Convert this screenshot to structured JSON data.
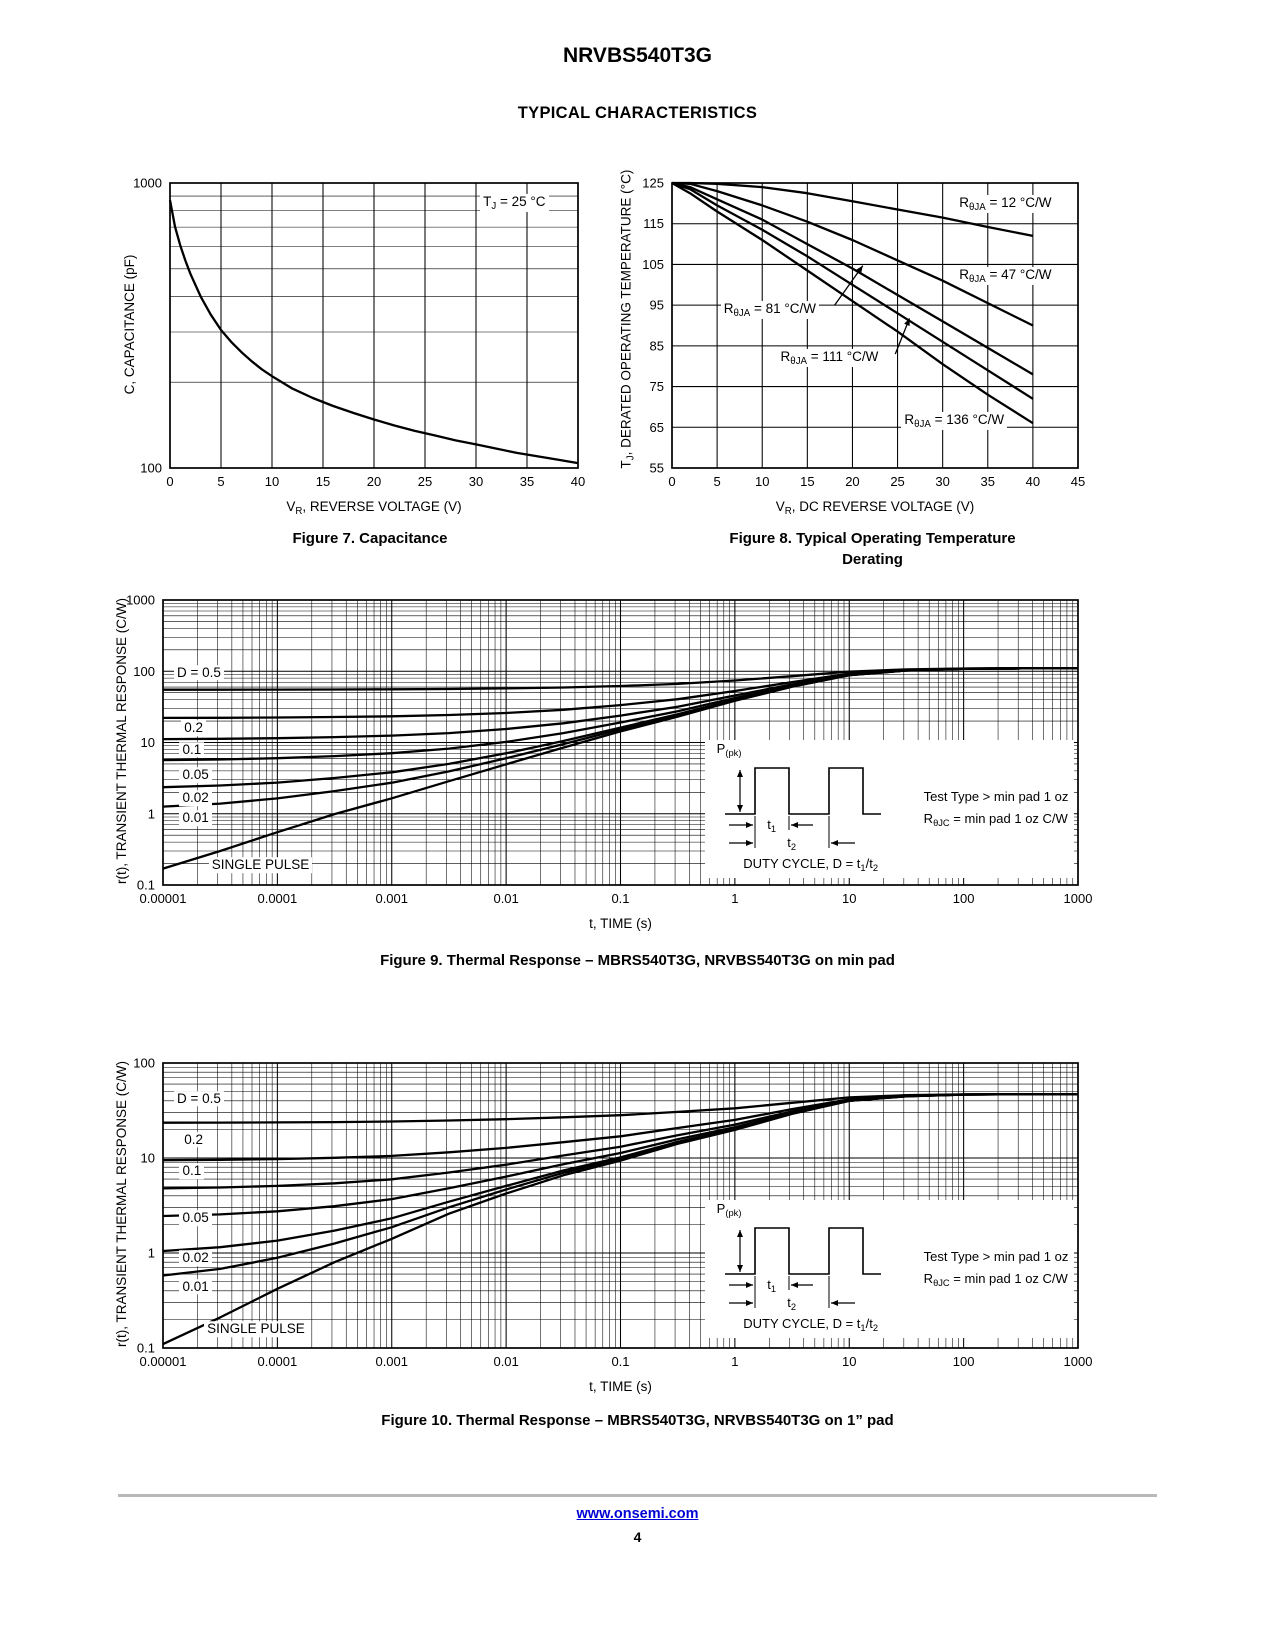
{
  "page": {
    "title": "NRVBS540T3G",
    "subtitle": "TYPICAL CHARACTERISTICS",
    "footer": {
      "link": "www.onsemi.com",
      "page_number": "4"
    }
  },
  "inset": {
    "ppk": "P~(pk)~",
    "t1": "t~1~",
    "t2": "t~2~",
    "duty": "DUTY CYCLE, D = t~1~/t~2~",
    "note1": "Test Type > min pad 1 oz",
    "note2": "R~θJC~ = min pad 1 oz C/W"
  },
  "chart_data": [
    {
      "key": "fig7",
      "type": "line",
      "caption": "Figure 7. Capacitance",
      "x": {
        "scale": "linear",
        "min": 0,
        "max": 40,
        "ticks": [
          0,
          5,
          10,
          15,
          20,
          25,
          30,
          35,
          40
        ],
        "title": "V~R~, REVERSE VOLTAGE (V)"
      },
      "y": {
        "scale": "log",
        "min": 100,
        "max": 1000,
        "tick_labels": [
          "100",
          "1000"
        ],
        "title": "C, CAPACITANCE (pF)"
      },
      "x_points": [
        0,
        0.5,
        1,
        1.5,
        2,
        3,
        4,
        5,
        6,
        7,
        8,
        9,
        10,
        12,
        14,
        16,
        18,
        20,
        22,
        24,
        26,
        28,
        30,
        32,
        34,
        36,
        38,
        40
      ],
      "series": [
        {
          "name": "capacitance",
          "values": [
            870,
            700,
            605,
            535,
            480,
            400,
            345,
            305,
            277,
            255,
            237,
            222,
            210,
            190,
            176,
            165,
            156,
            148,
            141,
            135,
            130,
            125,
            121,
            117,
            113,
            110,
            107,
            104
          ]
        }
      ],
      "annotations": [
        {
          "text": "T~J~ = 25 °C",
          "fx": 0.76,
          "fy": 0.07
        }
      ]
    },
    {
      "key": "fig8",
      "type": "line",
      "caption_lines": [
        "Figure 8. Typical Operating Temperature",
        "Derating"
      ],
      "x": {
        "scale": "linear",
        "min": 0,
        "max": 45,
        "ticks": [
          0,
          5,
          10,
          15,
          20,
          25,
          30,
          35,
          40,
          45
        ],
        "title": "V~R~, DC REVERSE VOLTAGE (V)"
      },
      "y": {
        "scale": "linear",
        "min": 55,
        "max": 125,
        "ticks": [
          55,
          65,
          75,
          85,
          95,
          105,
          115,
          125
        ],
        "title": "T~J~, DERATED OPERATING TEMPERATURE (°C)"
      },
      "x_points": [
        0,
        2,
        5,
        10,
        15,
        20,
        25,
        30,
        35,
        40
      ],
      "series": [
        {
          "name": "RθJA = 12 °C/W",
          "values": [
            125,
            125,
            124.8,
            124,
            122.5,
            120.5,
            118.5,
            116.5,
            114.2,
            112
          ]
        },
        {
          "name": "RθJA = 47 °C/W",
          "values": [
            125,
            124.8,
            123,
            119.5,
            115.5,
            111,
            106,
            101,
            95.5,
            90
          ]
        },
        {
          "name": "RθJA = 81 °C/W",
          "values": [
            125,
            124,
            121,
            116,
            110,
            104,
            97.5,
            91,
            84.5,
            78
          ]
        },
        {
          "name": "RθJA = 111 °C/W",
          "values": [
            125,
            123.5,
            119.5,
            113.5,
            107,
            100,
            93,
            86,
            79,
            72
          ]
        },
        {
          "name": "RθJA = 136 °C/W",
          "values": [
            125,
            122.5,
            118,
            111,
            103.5,
            96,
            88.5,
            80.5,
            73,
            66
          ]
        }
      ],
      "annotations": [
        {
          "text": "R~θJA~ = 12 °C/W",
          "fx": 0.7,
          "fy": 0.075
        },
        {
          "text": "R~θJA~ = 47 °C/W",
          "fx": 0.7,
          "fy": 0.325
        },
        {
          "text": "R~θJA~ = 81 °C/W",
          "fx": 0.12,
          "fy": 0.445,
          "arrow": {
            "x1": 0.4,
            "y1": 0.43,
            "x2": 0.47,
            "y2": 0.29
          }
        },
        {
          "text": "R~θJA~ = 111 °C/W",
          "fx": 0.26,
          "fy": 0.615,
          "arrow": {
            "x1": 0.55,
            "y1": 0.6,
            "x2": 0.585,
            "y2": 0.475
          }
        },
        {
          "text": "R~θJA~ = 136 °C/W",
          "fx": 0.565,
          "fy": 0.835
        }
      ]
    },
    {
      "key": "fig9",
      "type": "line",
      "caption": "Figure 9. Thermal Response – MBRS540T3G, NRVBS540T3G on min pad",
      "x": {
        "scale": "log",
        "min": 1e-05,
        "max": 1000,
        "tick_labels": [
          "0.00001",
          "0.0001",
          "0.001",
          "0.01",
          "0.1",
          "1",
          "10",
          "100",
          "1000"
        ],
        "title": "t, TIME (s)"
      },
      "y": {
        "scale": "log",
        "min": 0.1,
        "max": 1000,
        "tick_labels": [
          "0.1",
          "1",
          "10",
          "100",
          "1000"
        ],
        "title": "r(t), TRANSIENT THERMAL RESPONSE (C/W)"
      },
      "x_points": [
        1e-05,
        3.16e-05,
        0.0001,
        0.000316,
        0.001,
        0.00316,
        0.01,
        0.0316,
        0.1,
        0.316,
        1,
        3.16,
        10,
        31.6,
        100,
        316,
        1000
      ],
      "series": [
        {
          "name": "D = 0.5",
          "values": [
            55.08,
            55.15,
            55.28,
            55.5,
            55.83,
            56.43,
            57.48,
            59.24,
            62.15,
            66.55,
            74.25,
            85.25,
            99,
            106.15,
            109.18,
            109.84,
            110
          ]
        },
        {
          "name": "D = 0.2",
          "values": [
            22.13,
            22.24,
            22.44,
            22.79,
            23.32,
            24.29,
            25.96,
            28.78,
            33.44,
            40.48,
            52.8,
            70.4,
            92.4,
            103.84,
            108.68,
            109.74,
            110
          ]
        },
        {
          "name": "D = 0.1",
          "values": [
            11.15,
            11.27,
            11.5,
            11.89,
            12.49,
            13.57,
            15.46,
            18.62,
            23.87,
            31.79,
            45.65,
            65.45,
            90.2,
            103.07,
            108.52,
            109.7,
            110
          ]
        },
        {
          "name": "D = 0.05",
          "values": [
            5.66,
            5.78,
            6.02,
            6.44,
            7.07,
            8.22,
            10.2,
            13.55,
            19.09,
            27.45,
            42.08,
            62.98,
            89.1,
            102.69,
            108.43,
            109.69,
            110
          ]
        },
        {
          "name": "D = 0.02",
          "values": [
            2.36,
            2.49,
            2.74,
            3.17,
            3.82,
            5,
            7.05,
            10.5,
            16.21,
            24.84,
            39.93,
            61.49,
            88.44,
            102.45,
            108.38,
            109.68,
            110
          ]
        },
        {
          "name": "D = 0.01",
          "values": [
            1.26,
            1.39,
            1.64,
            2.08,
            2.73,
            3.93,
            6,
            9.49,
            15.26,
            23.97,
            39.22,
            61,
            88.22,
            102.38,
            108.37,
            109.67,
            110
          ]
        },
        {
          "name": "SINGLE PULSE",
          "values": [
            0.17,
            0.3,
            0.55,
            0.99,
            1.65,
            2.86,
            4.95,
            8.47,
            14.3,
            23.1,
            38.5,
            60.5,
            88,
            102.3,
            108.35,
            109.67,
            110
          ]
        }
      ],
      "annotations": [
        {
          "text": "D = 0.5",
          "fx": 0.012,
          "fy": 0.255
        },
        {
          "text": "0.2",
          "fx": 0.02,
          "fy": 0.45
        },
        {
          "text": "0.1",
          "fx": 0.018,
          "fy": 0.525
        },
        {
          "text": "0.05",
          "fx": 0.018,
          "fy": 0.615
        },
        {
          "text": "0.02",
          "fx": 0.018,
          "fy": 0.695
        },
        {
          "text": "0.01",
          "fx": 0.018,
          "fy": 0.765
        },
        {
          "text": "SINGLE PULSE",
          "fx": 0.05,
          "fy": 0.93
        }
      ],
      "inset_pos": {
        "fx": 0.592,
        "fy": 0.49
      }
    },
    {
      "key": "fig10",
      "type": "line",
      "caption": "Figure 10. Thermal Response – MBRS540T3G, NRVBS540T3G on 1” pad",
      "x": {
        "scale": "log",
        "min": 1e-05,
        "max": 1000,
        "tick_labels": [
          "0.00001",
          "0.0001",
          "0.001",
          "0.01",
          "0.1",
          "1",
          "10",
          "100",
          "1000"
        ],
        "title": "t, TIME (s)"
      },
      "y": {
        "scale": "log",
        "min": 0.1,
        "max": 100,
        "tick_labels": [
          "0.1",
          "1",
          "10",
          "100"
        ],
        "title": "r(t), TRANSIENT THERMAL RESPONSE (C/W)"
      },
      "x_points": [
        1e-05,
        3.16e-05,
        0.0001,
        0.000316,
        0.001,
        0.00316,
        0.01,
        0.0316,
        0.1,
        0.316,
        1,
        3.16,
        10,
        31.6,
        100,
        316,
        1000
      ],
      "series": [
        {
          "name": "D = 0.5",
          "values": [
            23.55,
            23.61,
            23.71,
            23.9,
            24.21,
            24.79,
            25.62,
            26.79,
            28.2,
            30.55,
            33.37,
            38.07,
            43.48,
            45.83,
            46.77,
            46.95,
            47
          ]
        },
        {
          "name": "D = 0.2",
          "values": [
            9.49,
            9.57,
            9.74,
            10.04,
            10.53,
            11.47,
            12.78,
            14.66,
            16.92,
            20.68,
            25.19,
            32.71,
            41.36,
            45.12,
            46.62,
            46.92,
            47
          ]
        },
        {
          "name": "D = 0.1",
          "values": [
            4.8,
            4.89,
            5.08,
            5.42,
            5.97,
            7.03,
            8.51,
            10.62,
            13.16,
            17.39,
            22.47,
            30.93,
            40.66,
            44.89,
            46.58,
            46.92,
            47
          ]
        },
        {
          "name": "D = 0.05",
          "values": [
            2.45,
            2.55,
            2.75,
            3.11,
            3.69,
            4.81,
            6.37,
            8.6,
            11.28,
            15.75,
            21.1,
            30.03,
            40.3,
            44.77,
            46.55,
            46.91,
            47
          ]
        },
        {
          "name": "D = 0.02",
          "values": [
            1.05,
            1.15,
            1.35,
            1.72,
            2.32,
            3.47,
            5.09,
            7.39,
            10.15,
            14.76,
            20.29,
            29.5,
            40.09,
            44.7,
            46.53,
            46.91,
            47
          ]
        },
        {
          "name": "D = 0.01",
          "values": [
            0.58,
            0.68,
            0.89,
            1.26,
            1.87,
            3.03,
            4.66,
            6.98,
            9.78,
            14.43,
            20.01,
            29.32,
            40.02,
            44.67,
            46.53,
            46.9,
            47
          ]
        },
        {
          "name": "SINGLE PULSE",
          "values": [
            0.11,
            0.21,
            0.42,
            0.8,
            1.41,
            2.59,
            4.23,
            6.58,
            9.4,
            14.1,
            19.74,
            29.14,
            39.95,
            44.65,
            46.53,
            46.91,
            47
          ]
        }
      ],
      "annotations": [
        {
          "text": "D = 0.5",
          "fx": 0.012,
          "fy": 0.125
        },
        {
          "text": "0.2",
          "fx": 0.02,
          "fy": 0.27
        },
        {
          "text": "0.1",
          "fx": 0.018,
          "fy": 0.38
        },
        {
          "text": "0.05",
          "fx": 0.018,
          "fy": 0.545
        },
        {
          "text": "0.02",
          "fx": 0.018,
          "fy": 0.685
        },
        {
          "text": "0.01",
          "fx": 0.018,
          "fy": 0.785
        },
        {
          "text": "SINGLE PULSE",
          "fx": 0.045,
          "fy": 0.935
        }
      ],
      "inset_pos": {
        "fx": 0.592,
        "fy": 0.48
      }
    }
  ]
}
